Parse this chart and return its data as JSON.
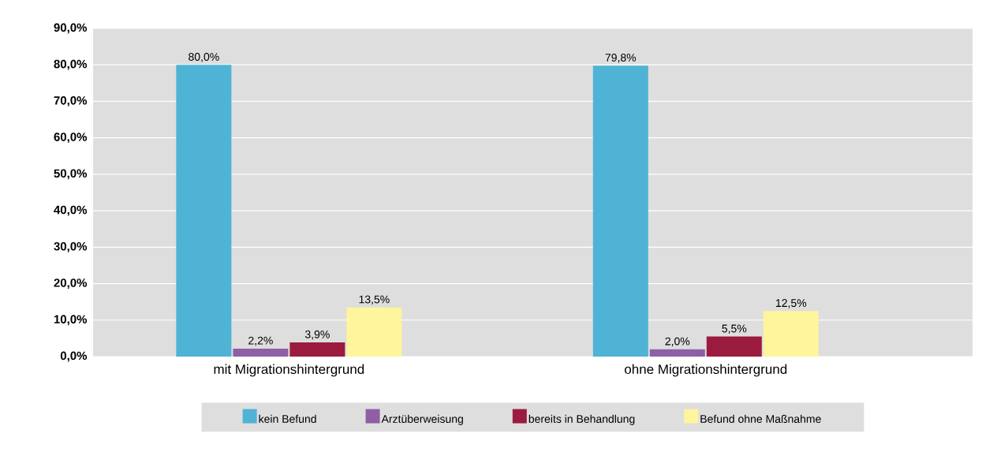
{
  "chart_data": {
    "type": "bar",
    "categories": [
      "mit Migrationshintergrund",
      "ohne Migrationshintergrund"
    ],
    "series": [
      {
        "name": "kein Befund",
        "color": "#4fb3d5",
        "values": [
          80.0,
          79.8
        ],
        "value_labels": [
          "80,0%",
          "79,8%"
        ]
      },
      {
        "name": "Arztüberweisung",
        "color": "#8f5fa5",
        "values": [
          2.2,
          2.0
        ],
        "value_labels": [
          "2,2%",
          "2,0%"
        ]
      },
      {
        "name": "bereits in Behandlung",
        "color": "#9b1b3f",
        "values": [
          3.9,
          5.5
        ],
        "value_labels": [
          "3,9%",
          "5,5%"
        ]
      },
      {
        "name": "Befund ohne Maßnahme",
        "color": "#fef59c",
        "values": [
          13.5,
          12.5
        ],
        "value_labels": [
          "13,5%",
          "12,5%"
        ]
      }
    ],
    "ylim": [
      0,
      90
    ],
    "yticks": [
      {
        "value": 0,
        "label": "0,0%"
      },
      {
        "value": 10,
        "label": "10,0%"
      },
      {
        "value": 20,
        "label": "20,0%"
      },
      {
        "value": 30,
        "label": "30,0%"
      },
      {
        "value": 40,
        "label": "40,0%"
      },
      {
        "value": 50,
        "label": "50,0%"
      },
      {
        "value": 60,
        "label": "60,0%"
      },
      {
        "value": 70,
        "label": "70,0%"
      },
      {
        "value": 80,
        "label": "80,0%"
      },
      {
        "value": 90,
        "label": "90,0%"
      }
    ],
    "grid": "y",
    "legend": "bottom"
  }
}
